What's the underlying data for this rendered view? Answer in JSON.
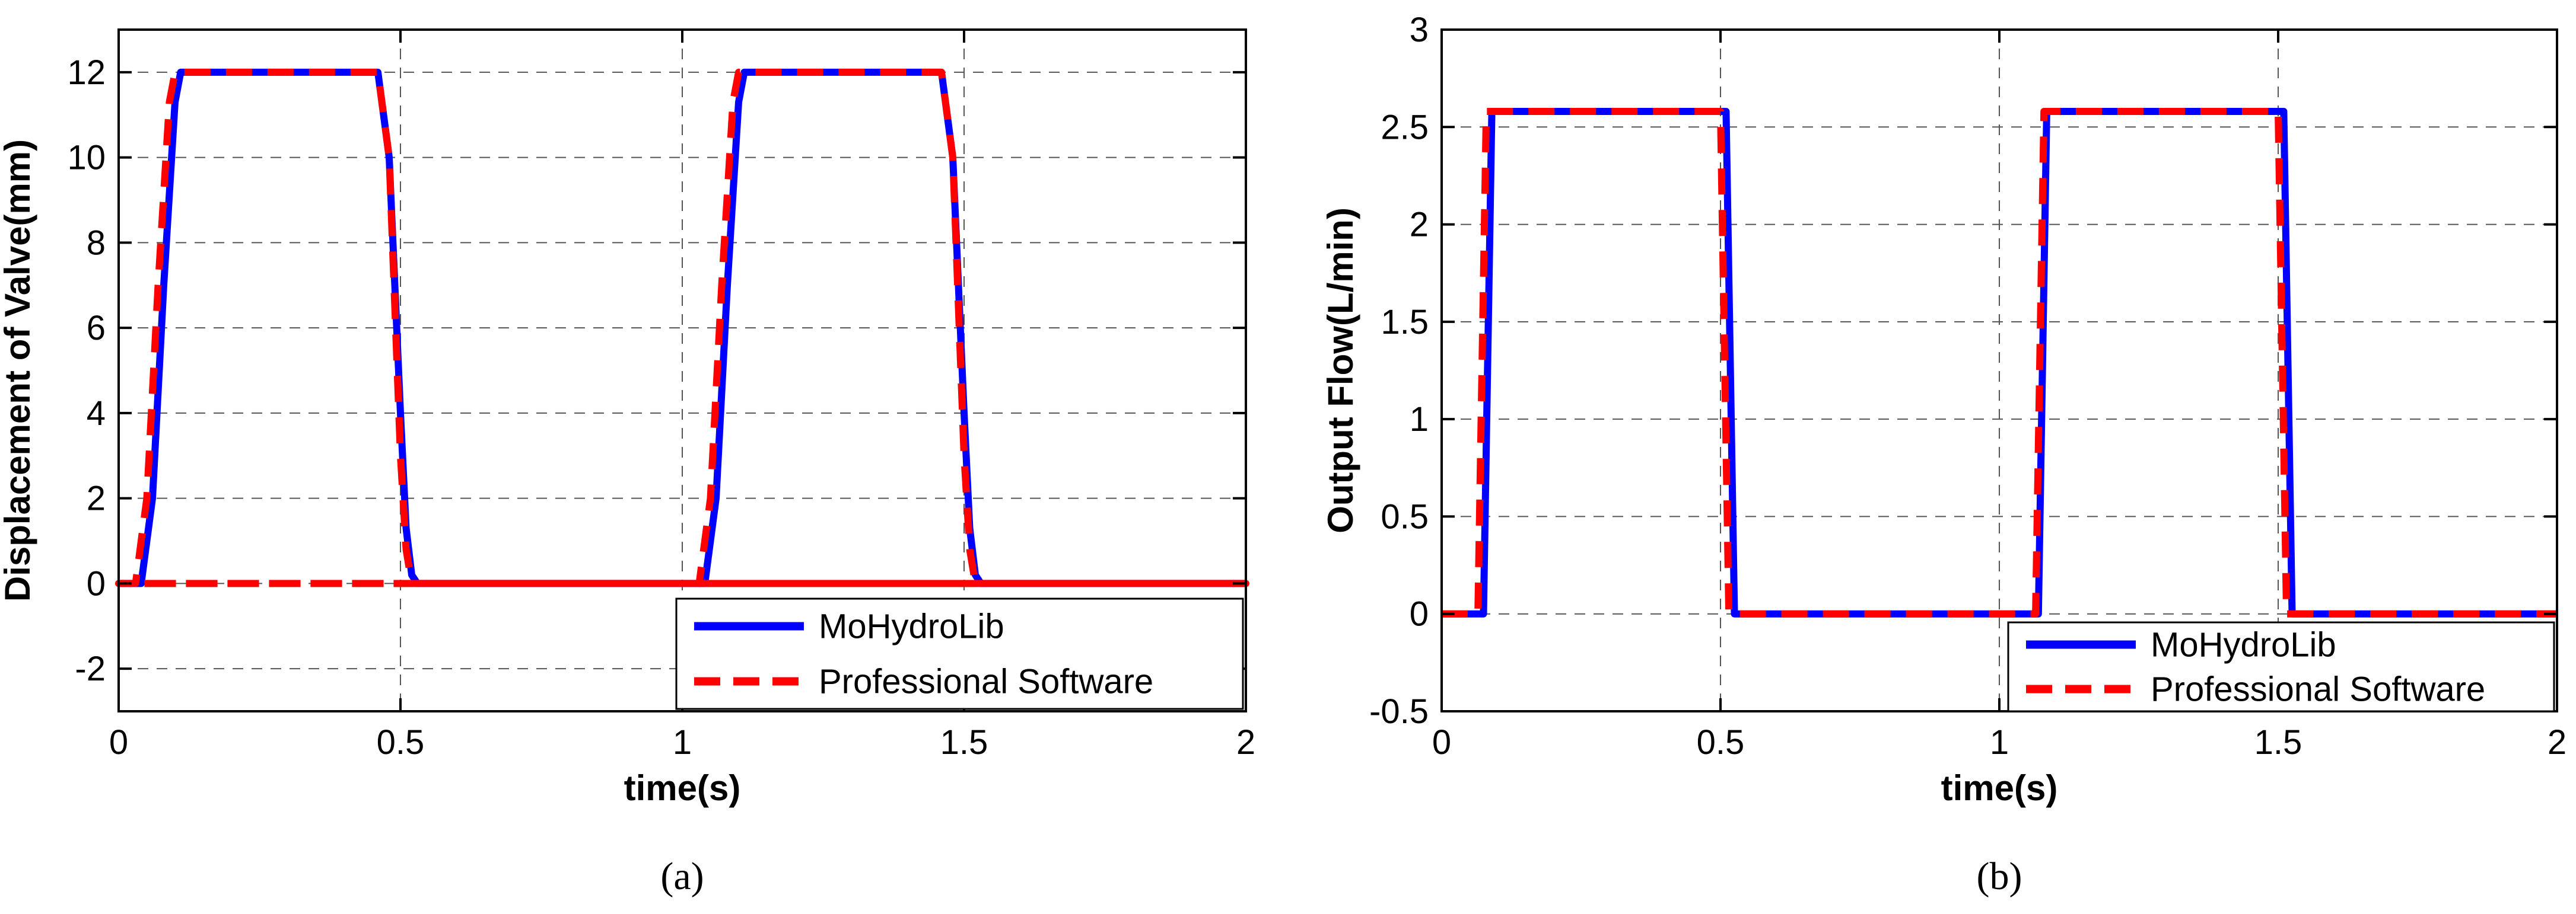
{
  "chart_data": [
    {
      "panel_label": "(a)",
      "type": "line",
      "title": "",
      "xlabel": "time(s)",
      "ylabel": "Displacement of Valve(mm)",
      "xlim": [
        0,
        2
      ],
      "ylim": [
        -3,
        13
      ],
      "xticks": [
        0,
        0.5,
        1,
        1.5,
        2
      ],
      "xtick_labels": [
        "0",
        "0.5",
        "1",
        "1.5",
        "2"
      ],
      "yticks": [
        -2,
        0,
        2,
        4,
        6,
        8,
        10,
        12
      ],
      "ytick_labels": [
        "-2",
        "0",
        "2",
        "4",
        "6",
        "8",
        "10",
        "12"
      ],
      "grid": true,
      "legend_position": "bottom-right",
      "series": [
        {
          "name": "MoHydroLib",
          "color": "#0000ff",
          "style": "solid",
          "x": [
            0,
            0.04,
            0.06,
            0.08,
            0.1,
            0.11,
            0.46,
            0.48,
            0.5,
            0.51,
            0.52,
            0.53,
            1.04,
            1.06,
            1.08,
            1.1,
            1.11,
            1.46,
            1.48,
            1.5,
            1.51,
            1.52,
            1.53,
            2
          ],
          "y": [
            0,
            0,
            2,
            7,
            11.3,
            12,
            12,
            10,
            4,
            1.3,
            0.2,
            0,
            0,
            2,
            7,
            11.3,
            12,
            12,
            10,
            4,
            1.3,
            0.2,
            0,
            0
          ]
        },
        {
          "name": "Professional Software",
          "color": "#ff0000",
          "style": "dashed",
          "x": [
            0,
            0.03,
            0.05,
            0.07,
            0.09,
            0.1,
            0.46,
            0.48,
            0.5,
            0.51,
            0.52,
            2,
            0,
            1.03,
            1.05,
            1.07,
            1.09,
            1.1,
            1.46,
            1.48,
            1.5,
            1.51,
            1.52
          ],
          "y": [
            0,
            0,
            2,
            7,
            11.3,
            12,
            12,
            10,
            3,
            0.8,
            0,
            0,
            0,
            0,
            2,
            7,
            11.3,
            12,
            12,
            10,
            3,
            0.8,
            0
          ]
        }
      ]
    },
    {
      "panel_label": "(b)",
      "type": "line",
      "title": "",
      "xlabel": "time(s)",
      "ylabel": "Output Flow(L/min)",
      "xlim": [
        0,
        2
      ],
      "ylim": [
        -0.5,
        3
      ],
      "xticks": [
        0,
        0.5,
        1,
        1.5,
        2
      ],
      "xtick_labels": [
        "0",
        "0.5",
        "1",
        "1.5",
        "2"
      ],
      "yticks": [
        -0.5,
        0,
        0.5,
        1,
        1.5,
        2,
        2.5,
        3
      ],
      "ytick_labels": [
        "-0.5",
        "0",
        "0.5",
        "1",
        "1.5",
        "2",
        "2.5",
        "3"
      ],
      "grid": true,
      "legend_position": "bottom-right",
      "series": [
        {
          "name": "MoHydroLib",
          "color": "#0000ff",
          "style": "solid",
          "x": [
            0,
            0.075,
            0.09,
            0.51,
            0.525,
            1.07,
            1.085,
            1.51,
            1.525,
            2
          ],
          "y": [
            0,
            0,
            2.58,
            2.58,
            0,
            0,
            2.58,
            2.58,
            0,
            0
          ]
        },
        {
          "name": "Professional Software",
          "color": "#ff0000",
          "style": "dashed",
          "x": [
            0,
            0.065,
            0.08,
            0.5,
            0.515,
            1.065,
            1.08,
            1.5,
            1.515,
            2
          ],
          "y": [
            0,
            0,
            2.58,
            2.58,
            0,
            0,
            2.58,
            2.58,
            0,
            0
          ]
        }
      ]
    }
  ]
}
